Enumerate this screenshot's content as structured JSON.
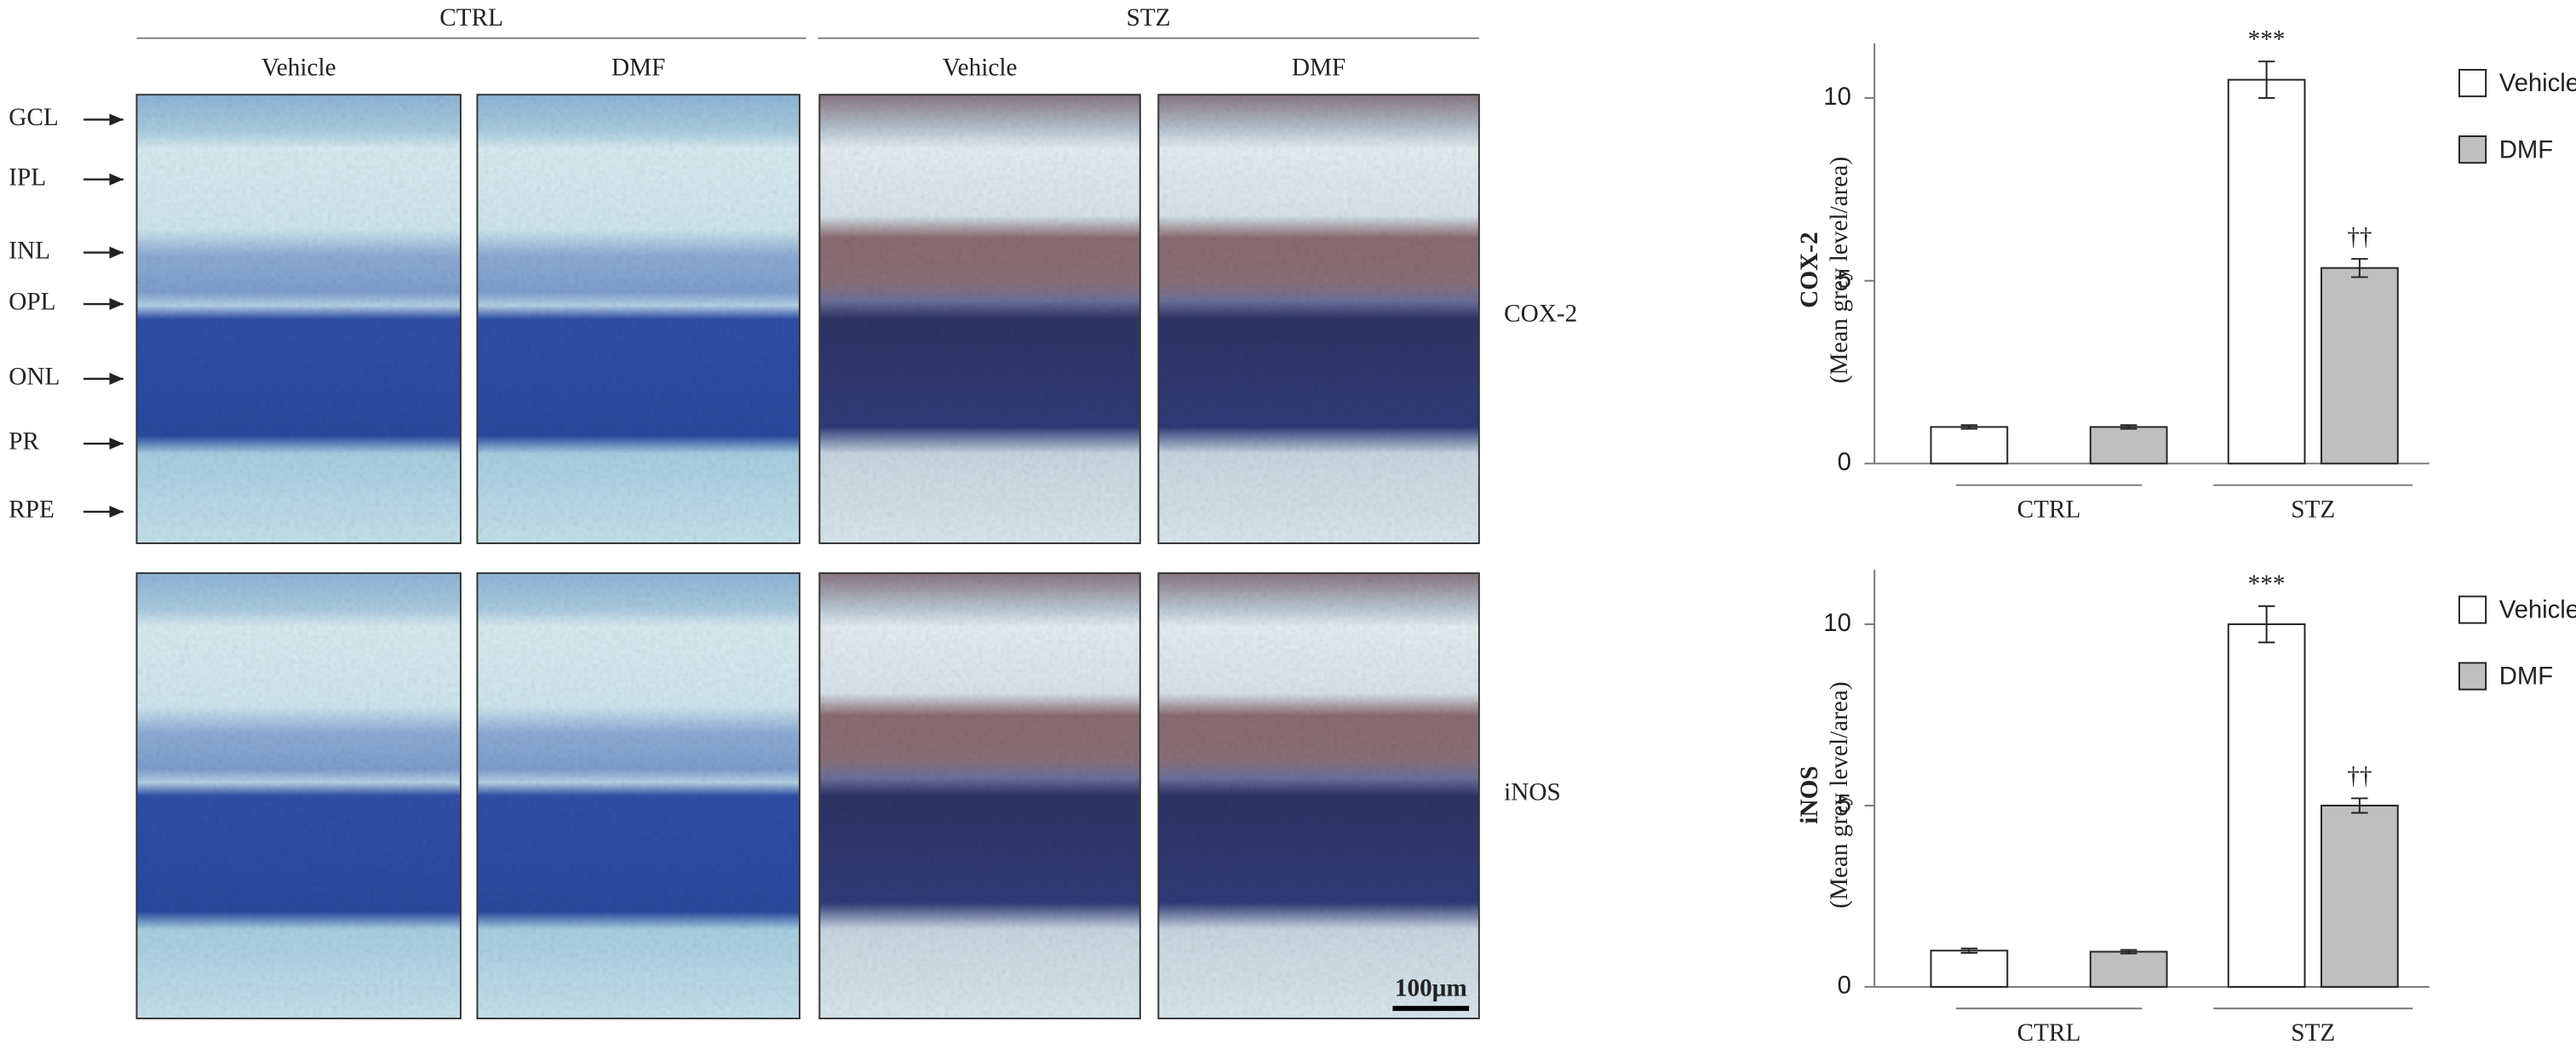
{
  "figure": {
    "groups": [
      "CTRL",
      "STZ"
    ],
    "columns": [
      "Vehicle",
      "DMF",
      "Vehicle",
      "DMF"
    ],
    "layers": [
      "GCL",
      "IPL",
      "INL",
      "OPL",
      "ONL",
      "PR",
      "RPE"
    ],
    "rows": [
      "COX-2",
      "iNOS"
    ],
    "scale_bar": "100μm"
  },
  "chart_data": [
    {
      "type": "bar",
      "ylabel": "COX-2",
      "ylabel_sub": "(Mean grey level/area)",
      "categories": [
        "CTRL",
        "STZ"
      ],
      "series": [
        {
          "name": "Vehicle",
          "color": "#ffffff",
          "values": [
            1.0,
            10.5
          ],
          "errors": [
            0.05,
            0.5
          ],
          "markers": [
            null,
            "***"
          ]
        },
        {
          "name": "DMF",
          "color": "#bfbfbf",
          "values": [
            1.0,
            5.35
          ],
          "errors": [
            0.05,
            0.25
          ],
          "markers": [
            null,
            "††"
          ]
        }
      ],
      "ylim": [
        0,
        11.5
      ],
      "yticks": [
        0,
        5,
        10
      ],
      "legend": "right"
    },
    {
      "type": "bar",
      "ylabel": "iNOS",
      "ylabel_sub": "(Mean grey level/area)",
      "categories": [
        "CTRL",
        "STZ"
      ],
      "series": [
        {
          "name": "Vehicle",
          "color": "#ffffff",
          "values": [
            1.0,
            10.0
          ],
          "errors": [
            0.06,
            0.5
          ],
          "markers": [
            null,
            "***"
          ]
        },
        {
          "name": "DMF",
          "color": "#bfbfbf",
          "values": [
            0.97,
            5.0
          ],
          "errors": [
            0.05,
            0.2
          ],
          "markers": [
            null,
            "††"
          ]
        }
      ],
      "ylim": [
        0,
        11.5
      ],
      "yticks": [
        0,
        5,
        10
      ],
      "legend": "right"
    }
  ]
}
